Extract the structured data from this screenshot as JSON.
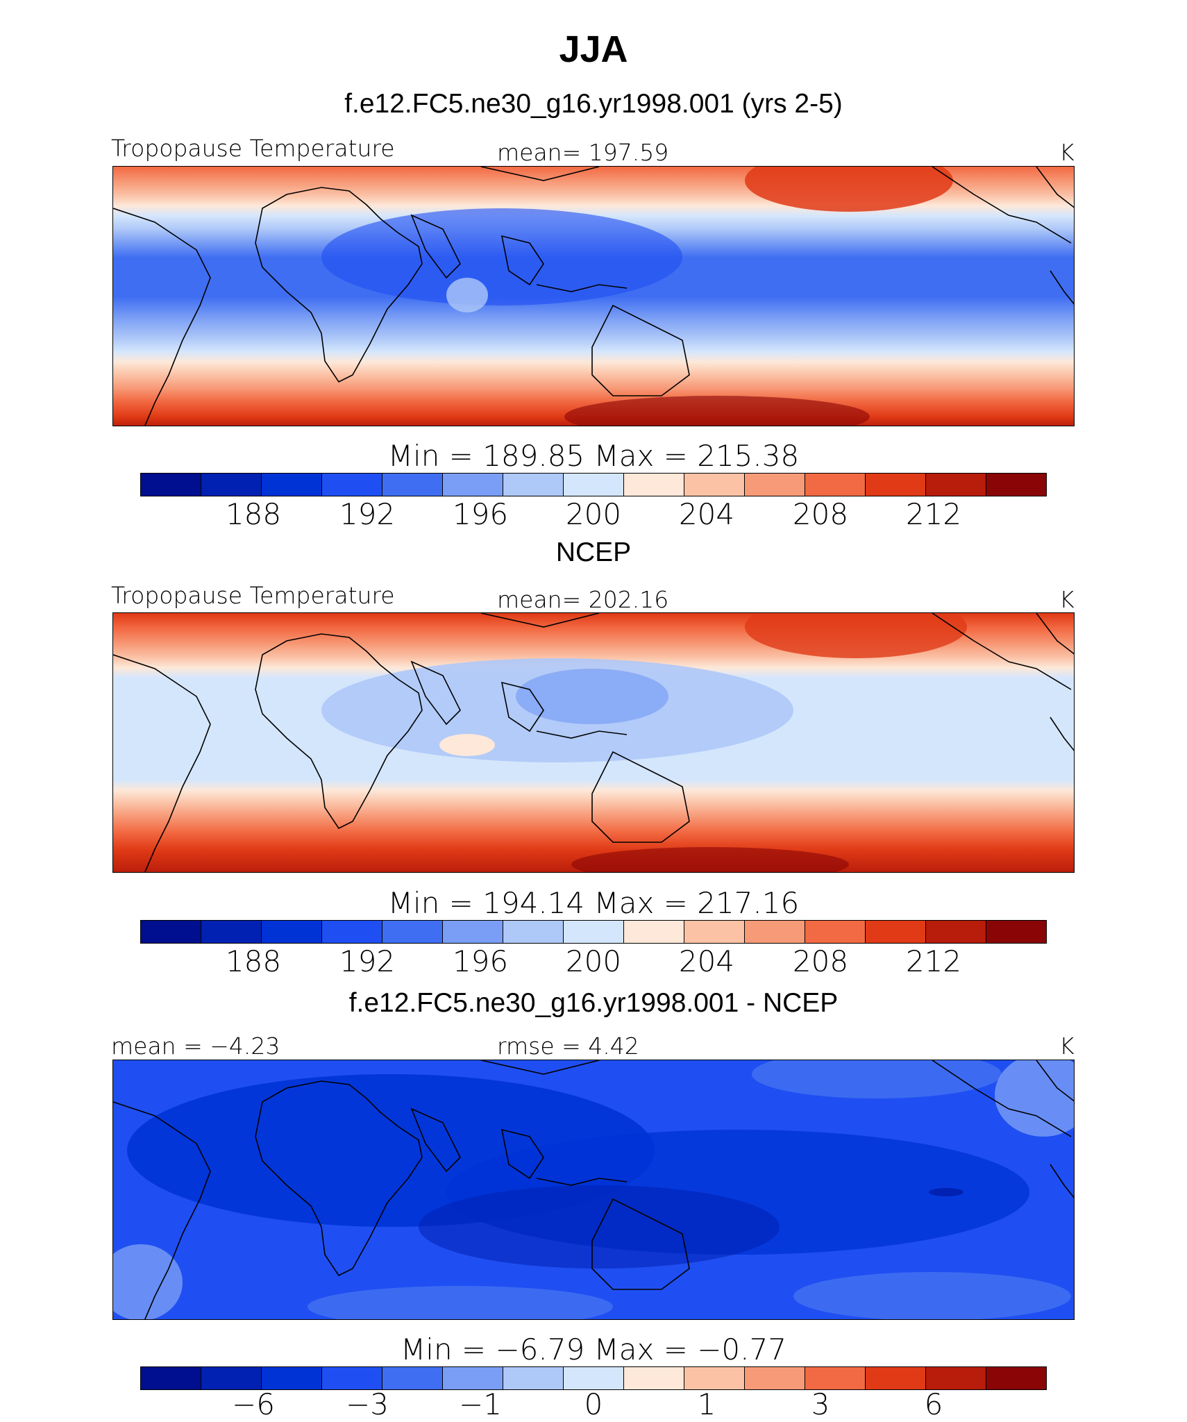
{
  "title": "JJA",
  "colorbar_colors": [
    "#000f8f",
    "#0021b2",
    "#0033d6",
    "#1f4ff2",
    "#3f6ef2",
    "#7a9ef5",
    "#aec8f8",
    "#d4e6fc",
    "#fde8d9",
    "#fbc2a6",
    "#f79a78",
    "#f26a43",
    "#e03a16",
    "#b81c0a",
    "#8a0505"
  ],
  "panels": [
    {
      "title": "f.e12.FC5.ne30_g16.yr1998.001 (yrs 2-5)",
      "left_label": "Tropopause Temperature",
      "mid_label": "mean=  197.59",
      "units": "K",
      "minmax": "Min  =  189.85  Max  =  215.38",
      "ticks": [
        "188",
        "192",
        "196",
        "200",
        "204",
        "208",
        "212"
      ]
    },
    {
      "title": "NCEP",
      "left_label": "Tropopause Temperature",
      "mid_label": "mean=  202.16",
      "units": "K",
      "minmax": "Min  =  194.14  Max  =  217.16",
      "ticks": [
        "188",
        "192",
        "196",
        "200",
        "204",
        "208",
        "212"
      ]
    },
    {
      "title": "f.e12.FC5.ne30_g16.yr1998.001 - NCEP",
      "left_label": "mean  =    −4.23",
      "mid_label": "rmse  =     4.42",
      "units": "K",
      "minmax": "Min  =    −6.79  Max  =    −0.77",
      "ticks": [
        "−6",
        "−3",
        "−1",
        "0",
        "1",
        "3",
        "6"
      ]
    }
  ]
}
